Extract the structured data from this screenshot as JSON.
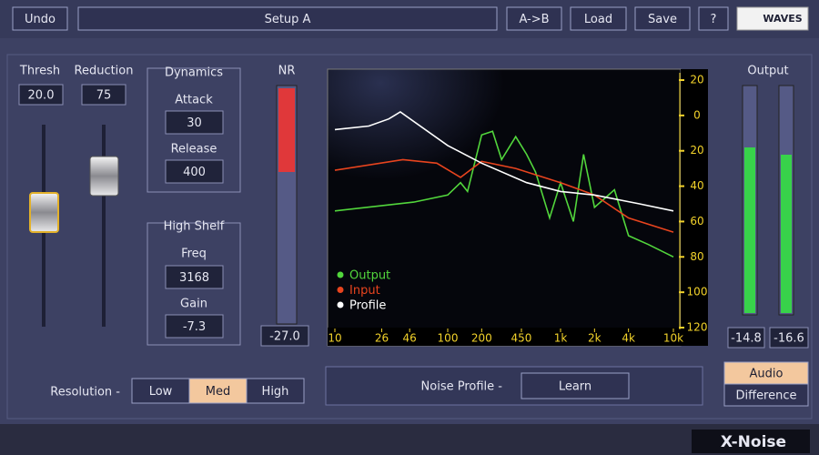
{
  "header": {
    "undo": "Undo",
    "preset": "Setup A",
    "ab": "A->B",
    "load": "Load",
    "save": "Save",
    "help": "?",
    "logo": "WAVES"
  },
  "thresh": {
    "label": "Thresh",
    "value": "20.0"
  },
  "reduction": {
    "label": "Reduction",
    "value": "75"
  },
  "dynamics": {
    "title": "Dynamics",
    "attack_label": "Attack",
    "attack": "30",
    "release_label": "Release",
    "release": "400"
  },
  "high_shelf": {
    "title": "High Shelf",
    "freq_label": "Freq",
    "freq": "3168",
    "gain_label": "Gain",
    "gain": "-7.3"
  },
  "nr": {
    "label": "NR",
    "value": "-27.0"
  },
  "output": {
    "label": "Output",
    "left": "-14.8",
    "right": "-16.6"
  },
  "resolution": {
    "label": "Resolution -",
    "options": [
      "Low",
      "Med",
      "High"
    ],
    "selected": "Med"
  },
  "noise_profile": {
    "label": "Noise Profile -",
    "button": "Learn"
  },
  "monitor": {
    "options": [
      "Audio",
      "Difference"
    ],
    "selected": "Audio"
  },
  "product": "X-Noise",
  "chart_data": {
    "type": "line",
    "xscale": "log",
    "xlim": [
      10,
      10000
    ],
    "xticks": [
      10,
      26,
      46,
      100,
      200,
      450,
      {
        "value": 1000,
        "label": "1k"
      },
      {
        "value": 2000,
        "label": "2k"
      },
      {
        "value": 4000,
        "label": "4k"
      },
      {
        "value": 10000,
        "label": "10k"
      }
    ],
    "ylim": [
      -120,
      20
    ],
    "yticks": [
      20,
      0,
      {
        "value": -20,
        "label": "20"
      },
      {
        "value": -40,
        "label": "40"
      },
      {
        "value": -60,
        "label": "60"
      },
      {
        "value": -80,
        "label": "80"
      },
      {
        "value": -100,
        "label": "100"
      },
      {
        "value": -120,
        "label": "120"
      }
    ],
    "series": [
      {
        "name": "Output",
        "color": "#52d63c",
        "x": [
          10,
          50,
          100,
          130,
          150,
          200,
          250,
          300,
          400,
          500,
          600,
          800,
          1000,
          1300,
          1600,
          2000,
          3000,
          4000,
          6000,
          10000
        ],
        "values": [
          -54,
          -49,
          -45,
          -38,
          -43,
          -11,
          -9,
          -25,
          -12,
          -22,
          -32,
          -58,
          -38,
          -60,
          -22,
          -52,
          -42,
          -68,
          -73,
          -80
        ]
      },
      {
        "name": "Input",
        "color": "#e8441e",
        "x": [
          10,
          40,
          80,
          130,
          200,
          400,
          1000,
          2000,
          4000,
          10000
        ],
        "values": [
          -31,
          -25,
          -27,
          -35,
          -26,
          -30,
          -38,
          -45,
          -58,
          -66
        ]
      },
      {
        "name": "Profile",
        "color": "#ffffff",
        "x": [
          10,
          20,
          30,
          38,
          100,
          200,
          500,
          1000,
          2000,
          5000,
          10000
        ],
        "values": [
          -8,
          -6,
          -2,
          2,
          -17,
          -27,
          -38,
          -43,
          -45,
          -50,
          -54
        ]
      }
    ]
  }
}
